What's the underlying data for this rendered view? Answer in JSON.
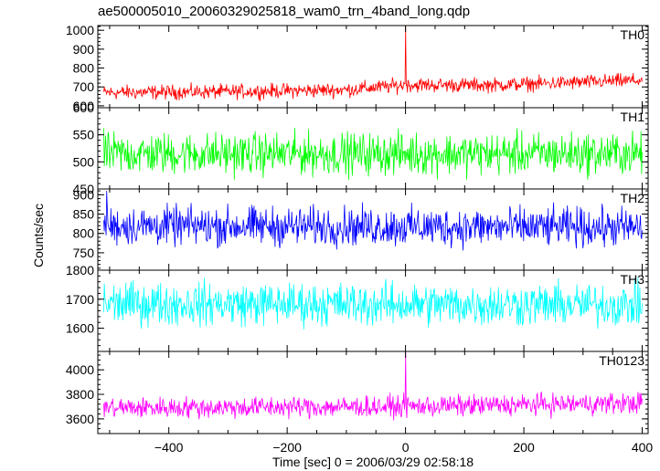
{
  "chart_data": {
    "type": "line",
    "title": "ae500005010_20060329025818_wam0_trn_4band_long.qdp",
    "xlabel": "Time [sec] 0 = 2006/03/29 02:58:18",
    "ylabel": "Counts/sec",
    "xlim": [
      -520,
      410
    ],
    "xticks": [
      -400,
      -200,
      0,
      200,
      400
    ],
    "x_tick_labels": [
      "−400",
      "−200",
      "0",
      "200",
      "400"
    ],
    "x_range": [
      -510,
      400
    ],
    "panels": [
      {
        "name": "TH0",
        "color": "#ff0000",
        "ylim": [
          590,
          1025
        ],
        "yticks": [
          600,
          700,
          800,
          900,
          1000
        ],
        "trend": [
          [
            -510,
            670
          ],
          [
            -300,
            675
          ],
          [
            -100,
            685
          ],
          [
            0,
            710
          ],
          [
            150,
            710
          ],
          [
            400,
            735
          ]
        ],
        "noise_amplitude": 42,
        "spikes": [
          [
            0,
            1025
          ]
        ]
      },
      {
        "name": "TH1",
        "color": "#00ff00",
        "ylim": [
          450,
          600
        ],
        "yticks": [
          450,
          500,
          550,
          600
        ],
        "trend": [
          [
            -510,
            515
          ],
          [
            400,
            515
          ]
        ],
        "noise_amplitude": 42,
        "spikes": []
      },
      {
        "name": "TH2",
        "color": "#0000ff",
        "ylim": [
          705,
          915
        ],
        "yticks": [
          750,
          800,
          850,
          900
        ],
        "trend": [
          [
            -510,
            820
          ],
          [
            400,
            815
          ]
        ],
        "noise_amplitude": 55,
        "spikes": [
          [
            -505,
            910
          ]
        ]
      },
      {
        "name": "TH3",
        "color": "#00ffff",
        "ylim": [
          1520,
          1800
        ],
        "yticks": [
          1600,
          1700,
          1800
        ],
        "trend": [
          [
            -510,
            1685
          ],
          [
            400,
            1680
          ]
        ],
        "noise_amplitude": 80,
        "spikes": []
      },
      {
        "name": "TH0123",
        "color": "#ff00ff",
        "ylim": [
          3480,
          4150
        ],
        "yticks": [
          3600,
          3800,
          4000
        ],
        "trend": [
          [
            -510,
            3690
          ],
          [
            0,
            3700
          ],
          [
            400,
            3730
          ]
        ],
        "noise_amplitude": 95,
        "spikes": [
          [
            0,
            4150
          ]
        ]
      }
    ]
  }
}
